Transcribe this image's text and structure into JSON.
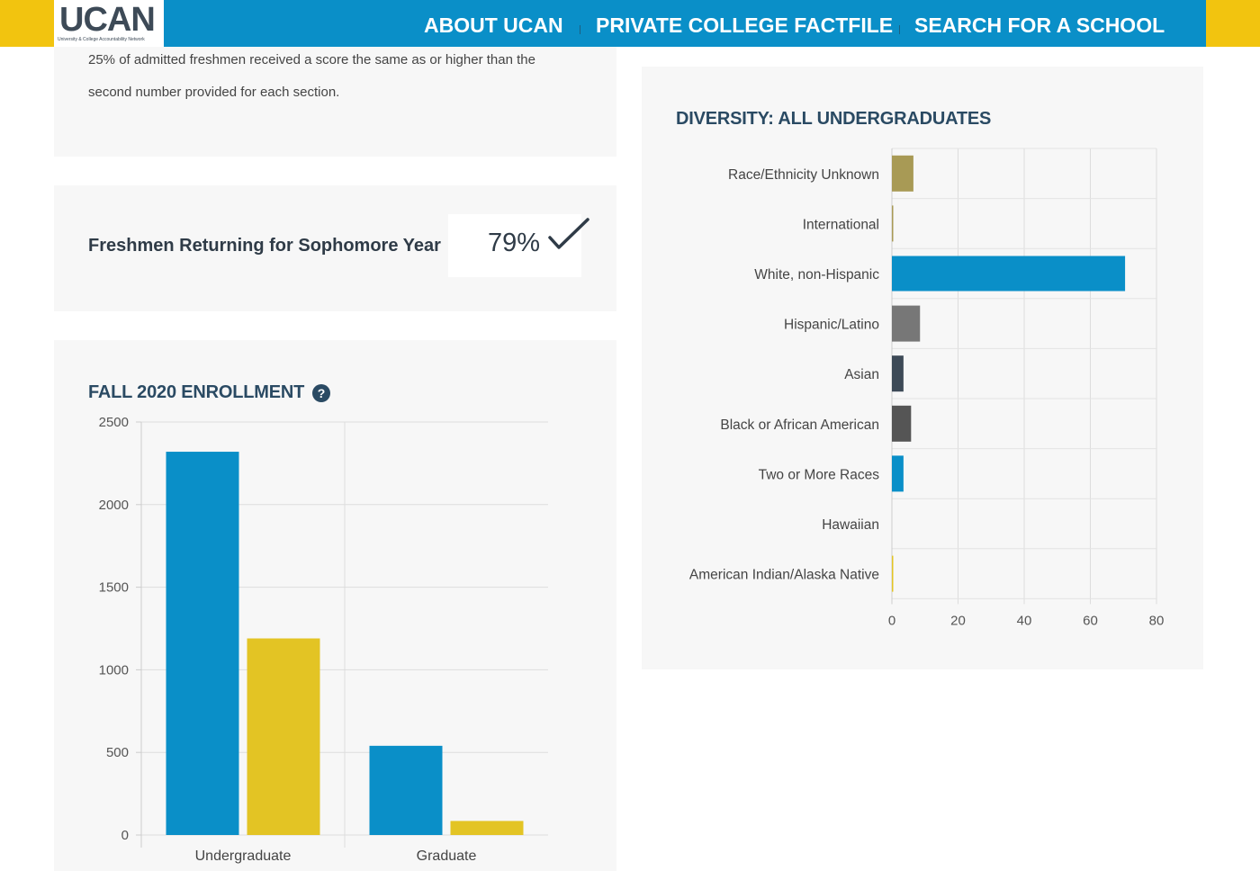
{
  "header": {
    "logo_text": "UCAN",
    "logo_subtitle": "University & College Accountability Network",
    "nav": [
      "ABOUT UCAN",
      "PRIVATE COLLEGE FACTFILE",
      "SEARCH FOR A SCHOOL"
    ],
    "colors": {
      "bar": "#0a8fc8",
      "accent": "#f2c40f"
    }
  },
  "intro_text": {
    "line1": "25% of admitted freshmen received a score the same as or higher than the",
    "line2": "second number provided for each section."
  },
  "freshmen_returning": {
    "label": "Freshmen Returning for Sophomore Year",
    "value": "79%",
    "icon": "check-icon"
  },
  "enrollment": {
    "title": "FALL 2020 ENROLLMENT",
    "help_icon": "?"
  },
  "diversity": {
    "title": "DIVERSITY: ALL UNDERGRADUATES"
  },
  "chart_data": [
    {
      "type": "bar",
      "orientation": "vertical",
      "title": "FALL 2020 ENROLLMENT",
      "categories": [
        "Undergraduate",
        "Graduate"
      ],
      "series": [
        {
          "color": "#0a8fc8",
          "values": [
            2320,
            540
          ]
        },
        {
          "color": "#e3c424",
          "values": [
            1190,
            85
          ]
        }
      ],
      "ylim": [
        0,
        2500
      ],
      "yticks": [
        0,
        500,
        1000,
        1500,
        2000,
        2500
      ],
      "grid": true
    },
    {
      "type": "bar",
      "orientation": "horizontal",
      "title": "DIVERSITY: ALL UNDERGRADUATES",
      "categories": [
        "Race/Ethnicity Unknown",
        "International",
        "White, non-Hispanic",
        "Hispanic/Latino",
        "Asian",
        "Black or African American",
        "Two or More Races",
        "Hawaiian",
        "American Indian/Alaska Native"
      ],
      "values": [
        6.5,
        0.3,
        70.5,
        8.5,
        3.5,
        5.8,
        3.5,
        0,
        0.3
      ],
      "colors": [
        "#a89a55",
        "#a89a55",
        "#0a8fc8",
        "#777777",
        "#3d4a57",
        "#555555",
        "#0a8fc8",
        "#0a8fc8",
        "#e3c424"
      ],
      "xlim": [
        0,
        80
      ],
      "xticks": [
        0,
        20,
        40,
        60,
        80
      ],
      "grid": true
    }
  ]
}
